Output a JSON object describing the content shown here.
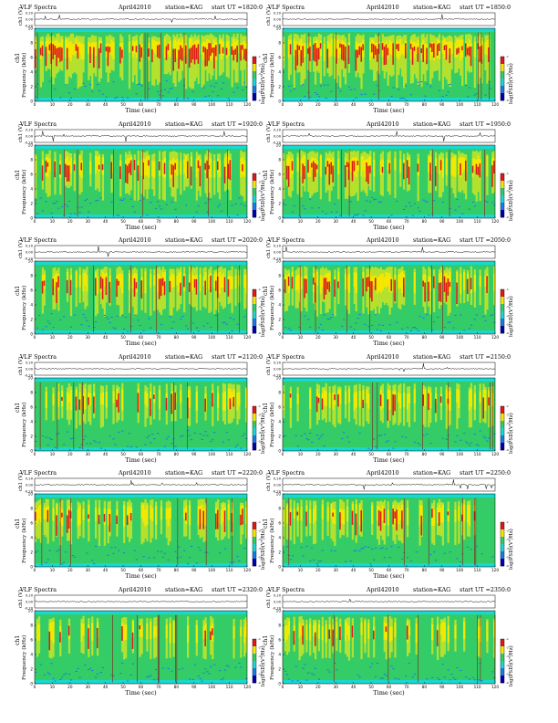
{
  "header": {
    "title": "VLF Spectra",
    "date": "April42010",
    "station": "station=KAG",
    "start_prefix": "start  UT"
  },
  "axes": {
    "time_label": "Time  (sec)",
    "freq_label": "Frequency  (kHz)",
    "ch_label": "ch1 (V)",
    "ch_label_small": "ch1",
    "cbar_label": "log(PSD)(V²/Hz)",
    "x_ticks": [
      "0",
      "10",
      "20",
      "30",
      "40",
      "50",
      "60",
      "70",
      "80",
      "90",
      "100",
      "110",
      "120"
    ],
    "x_ticks_values": [
      0,
      10,
      20,
      30,
      40,
      50,
      60,
      70,
      80,
      90,
      100,
      110,
      120
    ],
    "y_ticks": [
      "0",
      "2",
      "4",
      "6",
      "8",
      "10"
    ],
    "y_ticks_values": [
      0,
      2,
      4,
      6,
      8,
      10
    ],
    "ch_ticks": [
      "0.20",
      "0.00",
      "-0.20"
    ],
    "ch_ticks_values": [
      0.2,
      0,
      -0.2
    ],
    "cbar_ticks": [
      "-1",
      "-2",
      "-3",
      "-4",
      "-5",
      "-6"
    ],
    "cbar_ticks_values": [
      -1,
      -2,
      -3,
      -4,
      -5,
      -6
    ]
  },
  "colors": {
    "background_band": "#19d8d0",
    "base": "#33cc66",
    "mid": "#b5e12e",
    "yellow": "#f5e800",
    "red": "#dd1a1a",
    "low_blue": "#1a7ae6",
    "cbar": [
      "#dd1a1a",
      "#f5e800",
      "#33cc66",
      "#19d8d0",
      "#1a7ae6",
      "#0000aa"
    ]
  },
  "chart_data": [
    {
      "type": "heatmap",
      "start": "=1820:0",
      "xlim": [
        0,
        120
      ],
      "ylim": [
        0,
        10
      ],
      "ch_ylim": [
        -0.2,
        0.2
      ],
      "cbar_range": [
        -6,
        -1
      ],
      "activity": 0.95
    },
    {
      "type": "heatmap",
      "start": "=1850:0",
      "xlim": [
        0,
        120
      ],
      "ylim": [
        0,
        10
      ],
      "ch_ylim": [
        -0.2,
        0.2
      ],
      "cbar_range": [
        -6,
        -1
      ],
      "activity": 0.95
    },
    {
      "type": "heatmap",
      "start": "=1920:0",
      "xlim": [
        0,
        120
      ],
      "ylim": [
        0,
        10
      ],
      "ch_ylim": [
        -0.2,
        0.2
      ],
      "cbar_range": [
        -6,
        -1
      ],
      "activity": 0.75
    },
    {
      "type": "heatmap",
      "start": "=1950:0",
      "xlim": [
        0,
        120
      ],
      "ylim": [
        0,
        10
      ],
      "ch_ylim": [
        -0.2,
        0.2
      ],
      "cbar_range": [
        -6,
        -1
      ],
      "activity": 0.75
    },
    {
      "type": "heatmap",
      "start": "=2020:0",
      "xlim": [
        0,
        120
      ],
      "ylim": [
        0,
        10
      ],
      "ch_ylim": [
        -0.2,
        0.2
      ],
      "cbar_range": [
        -6,
        -1
      ],
      "activity": 0.7
    },
    {
      "type": "heatmap",
      "start": "=2050:0",
      "xlim": [
        0,
        120
      ],
      "ylim": [
        0,
        10
      ],
      "ch_ylim": [
        -0.2,
        0.2
      ],
      "cbar_range": [
        -6,
        -1
      ],
      "activity": 0.7
    },
    {
      "type": "heatmap",
      "start": "=2120:0",
      "xlim": [
        0,
        120
      ],
      "ylim": [
        0,
        10
      ],
      "ch_ylim": [
        -0.2,
        0.2
      ],
      "cbar_range": [
        -6,
        -1
      ],
      "activity": 0.5
    },
    {
      "type": "heatmap",
      "start": "=2150:0",
      "xlim": [
        0,
        120
      ],
      "ylim": [
        0,
        10
      ],
      "ch_ylim": [
        -0.2,
        0.2
      ],
      "cbar_range": [
        -6,
        -1
      ],
      "activity": 0.5
    },
    {
      "type": "heatmap",
      "start": "=2220:0",
      "xlim": [
        0,
        120
      ],
      "ylim": [
        0,
        10
      ],
      "ch_ylim": [
        -0.2,
        0.2
      ],
      "cbar_range": [
        -6,
        -1
      ],
      "activity": 0.55
    },
    {
      "type": "heatmap",
      "start": "=2250:0",
      "xlim": [
        0,
        120
      ],
      "ylim": [
        0,
        10
      ],
      "ch_ylim": [
        -0.2,
        0.2
      ],
      "cbar_range": [
        -6,
        -1
      ],
      "activity": 0.55
    },
    {
      "type": "heatmap",
      "start": "=2320:0",
      "xlim": [
        0,
        120
      ],
      "ylim": [
        0,
        10
      ],
      "ch_ylim": [
        -0.2,
        0.2
      ],
      "cbar_range": [
        -6,
        -1
      ],
      "activity": 0.45
    },
    {
      "type": "heatmap",
      "start": "=2350:0",
      "xlim": [
        0,
        120
      ],
      "ylim": [
        0,
        10
      ],
      "ch_ylim": [
        -0.2,
        0.2
      ],
      "cbar_range": [
        -6,
        -1
      ],
      "activity": 0.45
    }
  ]
}
